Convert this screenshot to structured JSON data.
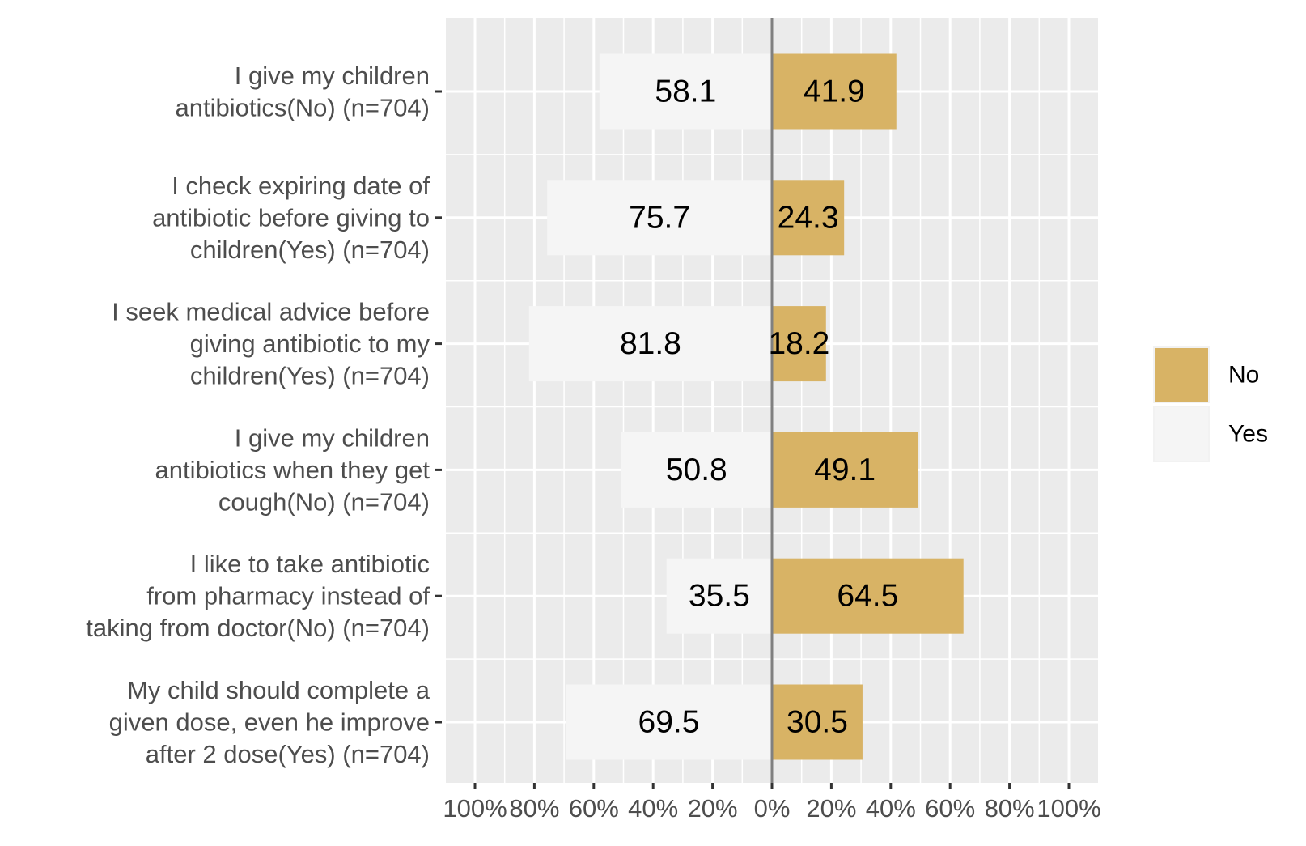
{
  "chart_data": {
    "type": "bar",
    "orientation": "horizontal-diverging",
    "categories": [
      [
        "I give my children",
        "antibiotics(No) (n=704)"
      ],
      [
        "I check expiring date of",
        "antibiotic before giving to",
        "children(Yes) (n=704)"
      ],
      [
        "I seek medical advice before",
        "giving antibiotic to my",
        "children(Yes) (n=704)"
      ],
      [
        "I give my children",
        "antibiotics when they get",
        "cough(No) (n=704)"
      ],
      [
        "I like to take antibiotic",
        "from pharmacy instead of",
        "taking from doctor(No) (n=704)"
      ],
      [
        "My child should complete a",
        "given dose, even he improve",
        "after 2 dose(Yes) (n=704)"
      ]
    ],
    "series": [
      {
        "name": "No",
        "color": "#d8b365",
        "direction": "right",
        "values": [
          41.9,
          24.3,
          18.2,
          49.1,
          64.5,
          30.5
        ],
        "labels": [
          "41.9",
          "24.3",
          "18.2",
          "49.1",
          "64.5",
          "30.5"
        ]
      },
      {
        "name": "Yes",
        "color": "#f5f5f5",
        "direction": "left",
        "values": [
          58.1,
          75.7,
          81.8,
          50.8,
          35.5,
          69.5
        ],
        "labels": [
          "58.1",
          "75.7",
          "81.8",
          "50.8",
          "35.5",
          "69.5"
        ]
      }
    ],
    "x_ticks": [
      "100%",
      "80%",
      "60%",
      "40%",
      "20%",
      "0%",
      "20%",
      "40%",
      "60%",
      "80%",
      "100%"
    ],
    "xlim": [
      -110,
      110
    ],
    "title": "",
    "xlabel": "",
    "ylabel": "",
    "grid": true,
    "legend_position": "right",
    "panel_color": "#ebebeb",
    "zero_line_color": "#808080"
  }
}
